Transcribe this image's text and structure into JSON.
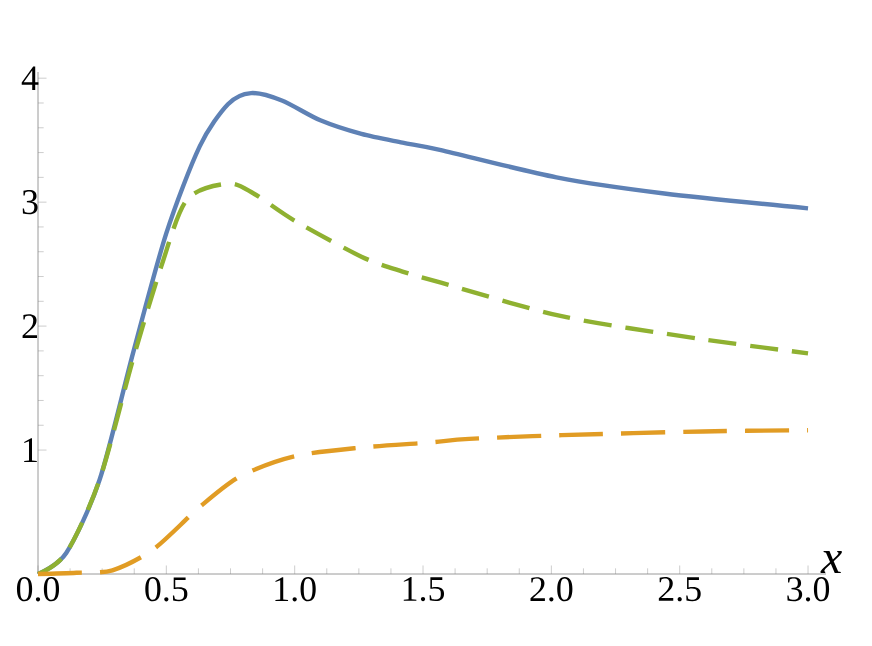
{
  "chart_data": {
    "type": "line",
    "xlabel": "x",
    "xlim": [
      0,
      3.07
    ],
    "ylim": [
      0,
      4.05
    ],
    "xticks": [
      {
        "value": 0,
        "label": "0.0"
      },
      {
        "value": 0.5,
        "label": "0.5"
      },
      {
        "value": 1,
        "label": "1.0"
      },
      {
        "value": 1.5,
        "label": "1.5"
      },
      {
        "value": 2,
        "label": "2.0"
      },
      {
        "value": 2.5,
        "label": "2.5"
      },
      {
        "value": 3,
        "label": "3.0"
      }
    ],
    "yticks": [
      1,
      2,
      3,
      4
    ],
    "grid": false,
    "marker": "none",
    "series": [
      {
        "color": "#5e81b5",
        "line_style": "solid",
        "x": [
          0,
          0.11,
          0.24,
          0.37,
          0.5,
          0.63,
          0.74,
          0.83,
          0.95,
          1.1,
          1.26,
          1.42,
          1.57,
          2.02,
          2.44,
          3.0
        ],
        "values": [
          0,
          0.17,
          0.76,
          1.78,
          2.75,
          3.45,
          3.79,
          3.88,
          3.82,
          3.66,
          3.55,
          3.48,
          3.42,
          3.2,
          3.07,
          2.95
        ]
      },
      {
        "color": "#8fb131",
        "line_style": "dashed",
        "x": [
          0,
          0.11,
          0.24,
          0.37,
          0.48,
          0.58,
          0.74,
          0.84,
          1.0,
          1.26,
          1.42,
          1.57,
          2.04,
          2.57,
          3.0
        ],
        "values": [
          0,
          0.17,
          0.76,
          1.73,
          2.48,
          3.02,
          3.15,
          3.07,
          2.85,
          2.56,
          2.44,
          2.35,
          2.08,
          1.9,
          1.78
        ]
      },
      {
        "color": "#e19c24",
        "line_style": "dashed",
        "x": [
          0,
          0.15,
          0.29,
          0.45,
          0.63,
          0.79,
          1.0,
          1.26,
          1.52,
          1.68,
          2.04,
          2.59,
          3.0
        ],
        "values": [
          0,
          0.01,
          0.03,
          0.2,
          0.54,
          0.79,
          0.95,
          1.02,
          1.06,
          1.09,
          1.12,
          1.15,
          1.16
        ]
      }
    ]
  }
}
